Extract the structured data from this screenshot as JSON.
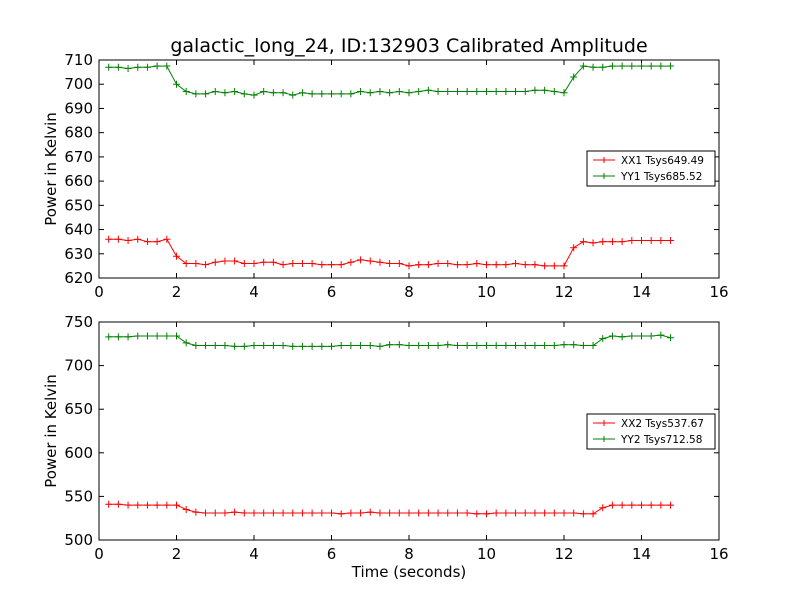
{
  "chart_data": [
    {
      "type": "line",
      "title": "galactic_long_24, ID:132903 Calibrated Amplitude",
      "xlabel": "",
      "ylabel": "Power in Kelvin",
      "xlim": [
        0,
        16
      ],
      "ylim": [
        620,
        710
      ],
      "xticks": [
        0,
        2,
        4,
        6,
        8,
        10,
        12,
        14,
        16
      ],
      "yticks": [
        620,
        630,
        640,
        650,
        660,
        670,
        680,
        690,
        700,
        710
      ],
      "grid": false,
      "legend_position": "center-right",
      "x": [
        0.25,
        0.5,
        0.75,
        1.0,
        1.25,
        1.5,
        1.75,
        2.0,
        2.25,
        2.5,
        2.75,
        3.0,
        3.25,
        3.5,
        3.75,
        4.0,
        4.25,
        4.5,
        4.75,
        5.0,
        5.25,
        5.5,
        5.75,
        6.0,
        6.25,
        6.5,
        6.75,
        7.0,
        7.25,
        7.5,
        7.75,
        8.0,
        8.25,
        8.5,
        8.75,
        9.0,
        9.25,
        9.5,
        9.75,
        10.0,
        10.25,
        10.5,
        10.75,
        11.0,
        11.25,
        11.5,
        11.75,
        12.0,
        12.25,
        12.5,
        12.75,
        13.0,
        13.25,
        13.5,
        13.75,
        14.0,
        14.25,
        14.5,
        14.75
      ],
      "series": [
        {
          "name": "XX1 Tsys649.49",
          "color": "#ff0000",
          "values": [
            636,
            636,
            635.5,
            636,
            635,
            635,
            636,
            629,
            626,
            626,
            625.5,
            626.5,
            627,
            627,
            626,
            626,
            626.5,
            626.5,
            625.5,
            626,
            626,
            626,
            625.5,
            625.5,
            625.5,
            626.5,
            627.5,
            627,
            626.5,
            626,
            626,
            625,
            625.5,
            625.5,
            626,
            626,
            625.5,
            625.5,
            626,
            625.5,
            625.5,
            625.5,
            626,
            625.5,
            625.5,
            625,
            625,
            625,
            632.5,
            635,
            634.5,
            635,
            635,
            635,
            635.5,
            635.5,
            635.5,
            635.5,
            635.5
          ]
        },
        {
          "name": "YY1 Tsys685.52",
          "color": "#008000",
          "values": [
            707,
            707,
            706.5,
            707,
            707,
            707.5,
            707.5,
            700,
            697,
            696,
            696,
            697,
            696.5,
            697,
            696,
            695.5,
            697,
            696.5,
            696.5,
            695.5,
            696.5,
            696,
            696,
            696,
            696,
            696,
            697,
            696.5,
            697,
            696.5,
            697,
            696.5,
            697,
            697.5,
            697,
            697,
            697,
            697,
            697,
            697,
            697,
            697,
            697,
            697,
            697.5,
            697.5,
            697,
            696.5,
            703,
            707.5,
            707,
            707,
            707.5,
            707.5,
            707.5,
            707.5,
            707.5,
            707.5,
            707.5
          ]
        }
      ]
    },
    {
      "type": "line",
      "title": "",
      "xlabel": "Time (seconds)",
      "ylabel": "Power in Kelvin",
      "xlim": [
        0,
        16
      ],
      "ylim": [
        500,
        750
      ],
      "xticks": [
        0,
        2,
        4,
        6,
        8,
        10,
        12,
        14,
        16
      ],
      "yticks": [
        500,
        550,
        600,
        650,
        700,
        750
      ],
      "grid": false,
      "legend_position": "center-right",
      "x": [
        0.25,
        0.5,
        0.75,
        1.0,
        1.25,
        1.5,
        1.75,
        2.0,
        2.25,
        2.5,
        2.75,
        3.0,
        3.25,
        3.5,
        3.75,
        4.0,
        4.25,
        4.5,
        4.75,
        5.0,
        5.25,
        5.5,
        5.75,
        6.0,
        6.25,
        6.5,
        6.75,
        7.0,
        7.25,
        7.5,
        7.75,
        8.0,
        8.25,
        8.5,
        8.75,
        9.0,
        9.25,
        9.5,
        9.75,
        10.0,
        10.25,
        10.5,
        10.75,
        11.0,
        11.25,
        11.5,
        11.75,
        12.0,
        12.25,
        12.5,
        12.75,
        13.0,
        13.25,
        13.5,
        13.75,
        14.0,
        14.25,
        14.5,
        14.75
      ],
      "series": [
        {
          "name": "XX2 Tsys537.67",
          "color": "#ff0000",
          "values": [
            541,
            541,
            540,
            540,
            540,
            540,
            540,
            540,
            535,
            532,
            531,
            531,
            531,
            532,
            531,
            531,
            531,
            531,
            531,
            531,
            531,
            531,
            531,
            531,
            530,
            531,
            531,
            532,
            531,
            531,
            531,
            531,
            531,
            531,
            531,
            531,
            531,
            531,
            530,
            530,
            531,
            531,
            531,
            531,
            531,
            531,
            531,
            531,
            531,
            530,
            530,
            537,
            540,
            540,
            540,
            540,
            540,
            540,
            540
          ]
        },
        {
          "name": "YY2 Tsys712.58",
          "color": "#008000",
          "values": [
            733,
            733,
            733,
            734,
            734,
            734,
            734,
            734,
            726,
            723,
            723,
            723,
            723,
            722,
            722,
            723,
            723,
            723,
            723,
            722,
            722,
            722,
            722,
            722,
            723,
            723,
            723,
            723,
            722,
            724,
            724,
            723,
            723,
            723,
            723,
            724,
            723,
            723,
            723,
            723,
            723,
            723,
            723,
            723,
            723,
            723,
            723,
            724,
            724,
            723,
            723,
            731,
            734,
            733,
            734,
            734,
            734,
            735,
            732
          ]
        }
      ]
    }
  ]
}
